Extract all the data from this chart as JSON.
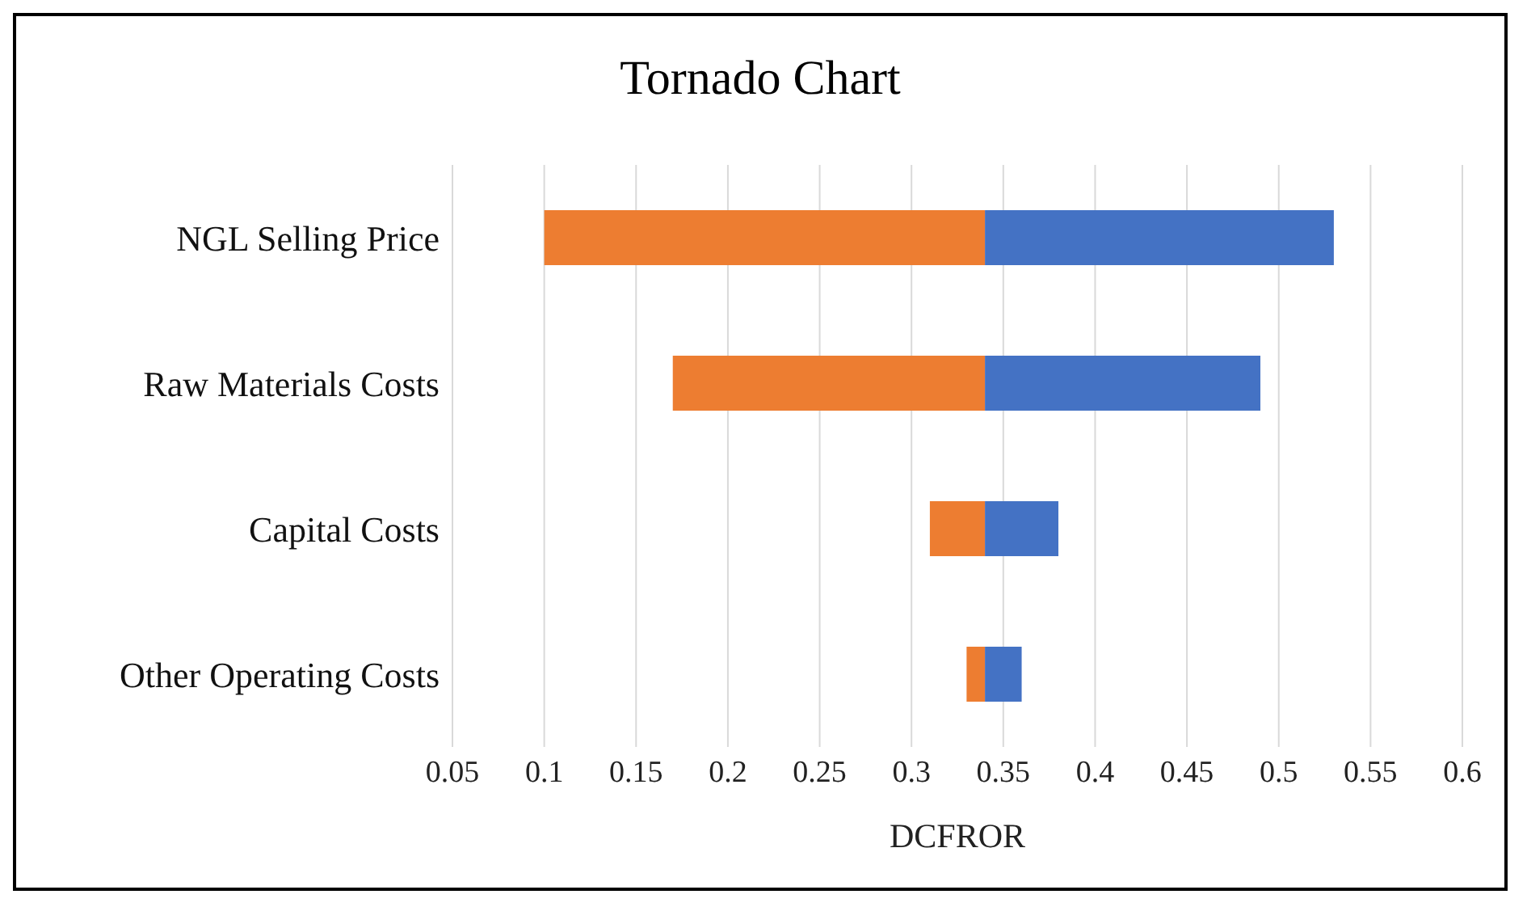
{
  "chart_data": {
    "type": "bar",
    "orientation": "horizontal",
    "title": "Tornado Chart",
    "xlabel": "DCFROR",
    "categories": [
      "NGL Selling Price",
      "Raw Materials Costs",
      "Capital Costs",
      "Other Operating Costs"
    ],
    "series": [
      {
        "color": "#ed7d31",
        "base": [
          0.1,
          0.17,
          0.31,
          0.33
        ],
        "values": [
          0.24,
          0.17,
          0.03,
          0.01
        ]
      },
      {
        "color": "#4472c4",
        "base": [
          0.34,
          0.34,
          0.34,
          0.34
        ],
        "values": [
          0.19,
          0.15,
          0.04,
          0.02
        ]
      }
    ],
    "xlim": [
      0.05,
      0.6
    ],
    "xticks": [
      0.05,
      0.1,
      0.15,
      0.2,
      0.25,
      0.3,
      0.35,
      0.4,
      0.45,
      0.5,
      0.55,
      0.6
    ],
    "grid": "x"
  }
}
